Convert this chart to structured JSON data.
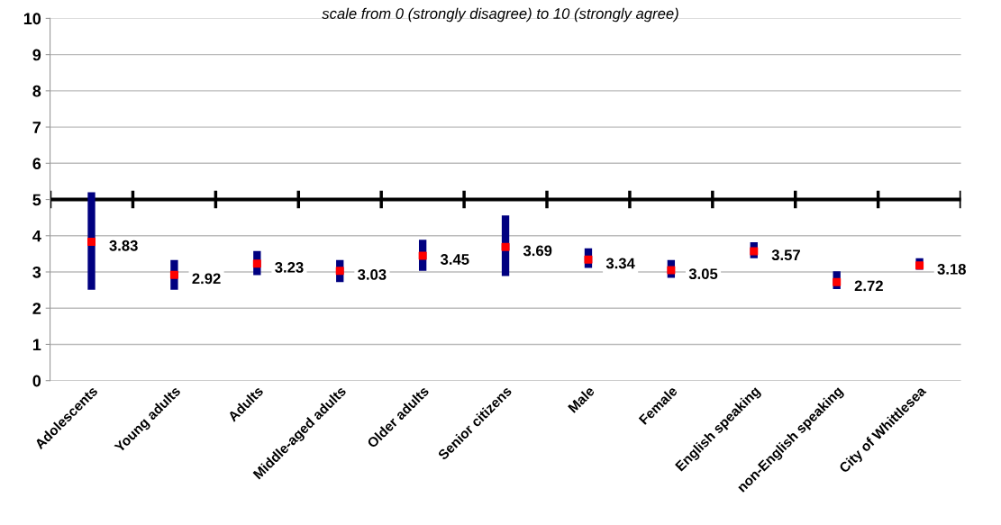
{
  "chart_data": {
    "type": "scatter",
    "subtitle": "scale from 0 (strongly disagree) to 10 (strongly agree)",
    "categories": [
      "Adolescents",
      "Young adults",
      "Adults",
      "Middle-aged adults",
      "Older adults",
      "Senior citizens",
      "Male",
      "Female",
      "English speaking",
      "non-English speaking",
      "City of Whittlesea"
    ],
    "series": [
      {
        "color": "#ff0000",
        "values": [
          3.83,
          2.92,
          3.23,
          3.03,
          3.45,
          3.69,
          3.34,
          3.05,
          3.57,
          2.72,
          3.18
        ],
        "errors": [
          [
            2.51,
            5.2
          ],
          [
            2.51,
            3.33
          ],
          [
            2.91,
            3.58
          ],
          [
            2.72,
            3.33
          ],
          [
            3.03,
            3.89
          ],
          [
            2.89,
            4.56
          ],
          [
            3.11,
            3.65
          ],
          [
            2.84,
            3.33
          ],
          [
            3.38,
            3.82
          ],
          [
            2.53,
            3.02
          ],
          [
            3.06,
            3.38
          ]
        ]
      }
    ],
    "ylim": [
      0,
      10
    ],
    "yticks": [
      0,
      1,
      2,
      3,
      4,
      5,
      6,
      7,
      8,
      9,
      10
    ],
    "grid": "y",
    "marker": "square",
    "data_labels": true,
    "ref_lines": [
      {
        "axis": "y",
        "value": 5,
        "color": "#000000"
      }
    ]
  }
}
